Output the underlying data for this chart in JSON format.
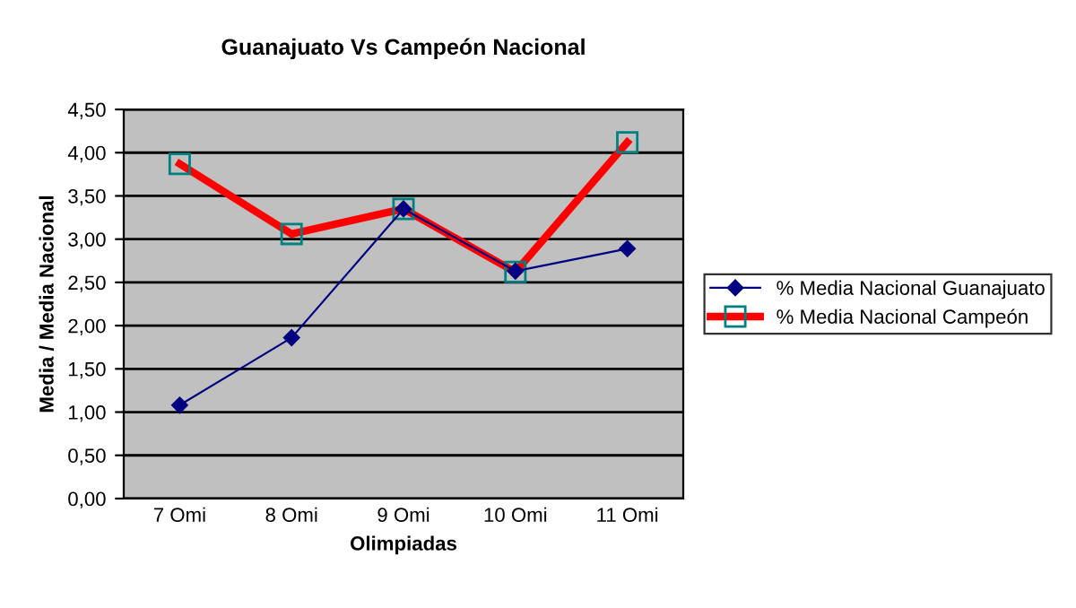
{
  "chart_data": {
    "type": "line",
    "title": "Guanajuato Vs Campeón Nacional",
    "xlabel": "Olimpiadas",
    "ylabel": "Media / Media Nacional",
    "categories": [
      "7 Omi",
      "8 Omi",
      "9 Omi",
      "10 Omi",
      "11 Omi"
    ],
    "series": [
      {
        "name": "% Media Nacional Guanajuato",
        "color": "#000080",
        "values": [
          1.08,
          1.86,
          3.35,
          2.63,
          2.89
        ],
        "marker": "diamond"
      },
      {
        "name": "% Media Nacional Campeón",
        "color": "#ff0000",
        "values": [
          3.87,
          3.06,
          3.35,
          2.62,
          4.12
        ],
        "marker": "square"
      }
    ],
    "ylim": [
      0,
      4.5
    ],
    "yticks": [
      {
        "value": 0,
        "label": "0,00"
      },
      {
        "value": 0.5,
        "label": "0,50"
      },
      {
        "value": 1,
        "label": "1,00"
      },
      {
        "value": 1.5,
        "label": "1,50"
      },
      {
        "value": 2,
        "label": "2,00"
      },
      {
        "value": 2.5,
        "label": "2,50"
      },
      {
        "value": 3,
        "label": "3,00"
      },
      {
        "value": 3.5,
        "label": "3,50"
      },
      {
        "value": 4,
        "label": "4,00"
      },
      {
        "value": 4.5,
        "label": "4,50"
      }
    ],
    "grid": "y",
    "legend": "right"
  }
}
